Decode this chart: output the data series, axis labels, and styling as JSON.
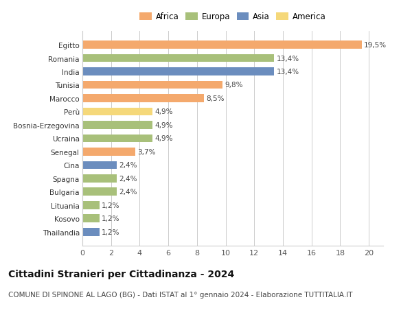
{
  "categories": [
    "Egitto",
    "Romania",
    "India",
    "Tunisia",
    "Marocco",
    "Perù",
    "Bosnia-Erzegovina",
    "Ucraina",
    "Senegal",
    "Cina",
    "Spagna",
    "Bulgaria",
    "Lituania",
    "Kosovo",
    "Thailandia"
  ],
  "values": [
    19.5,
    13.4,
    13.4,
    9.8,
    8.5,
    4.9,
    4.9,
    4.9,
    3.7,
    2.4,
    2.4,
    2.4,
    1.2,
    1.2,
    1.2
  ],
  "labels": [
    "19,5%",
    "13,4%",
    "13,4%",
    "9,8%",
    "8,5%",
    "4,9%",
    "4,9%",
    "4,9%",
    "3,7%",
    "2,4%",
    "2,4%",
    "2,4%",
    "1,2%",
    "1,2%",
    "1,2%"
  ],
  "continents": [
    "Africa",
    "Europa",
    "Asia",
    "Africa",
    "Africa",
    "America",
    "Europa",
    "Europa",
    "Africa",
    "Asia",
    "Europa",
    "Europa",
    "Europa",
    "Europa",
    "Asia"
  ],
  "colors": {
    "Africa": "#F4A96D",
    "Europa": "#A8C07A",
    "Asia": "#6B8DBE",
    "America": "#F5D87A"
  },
  "legend_order": [
    "Africa",
    "Europa",
    "Asia",
    "America"
  ],
  "xlim": [
    0,
    21
  ],
  "xticks": [
    0,
    2,
    4,
    6,
    8,
    10,
    12,
    14,
    16,
    18,
    20
  ],
  "title": "Cittadini Stranieri per Cittadinanza - 2024",
  "subtitle": "COMUNE DI SPINONE AL LAGO (BG) - Dati ISTAT al 1° gennaio 2024 - Elaborazione TUTTITALIA.IT",
  "background_color": "#ffffff",
  "bar_height": 0.6,
  "title_fontsize": 10,
  "subtitle_fontsize": 7.5,
  "label_fontsize": 7.5,
  "ytick_fontsize": 7.5,
  "xtick_fontsize": 8,
  "legend_fontsize": 8.5
}
